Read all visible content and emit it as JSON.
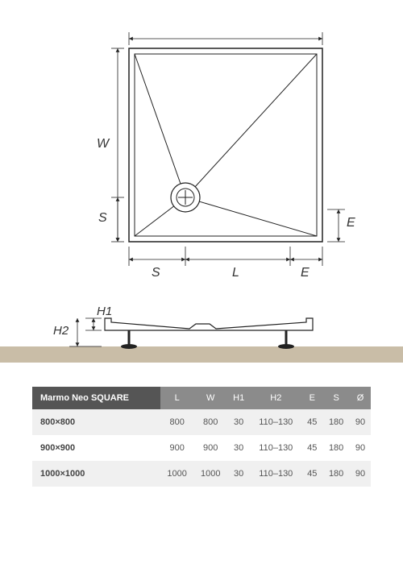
{
  "diagram": {
    "type": "technical-drawing",
    "plan_view": {
      "outline_color": "#222222",
      "line_width": 1.5,
      "labels": {
        "L": "L",
        "W": "W",
        "S_h": "S",
        "S_v": "S",
        "E_h": "E",
        "E_v": "E"
      },
      "label_fontsize": 16,
      "label_color": "#333333"
    },
    "side_view": {
      "labels": {
        "H1": "H1",
        "H2": "H2"
      },
      "ground_color": "#c9bda7",
      "outline_color": "#222222"
    }
  },
  "table": {
    "header_bg": "#8b8b8b",
    "header_first_bg": "#555555",
    "header_color": "#ffffff",
    "row_odd_bg": "#f0f0f0",
    "row_even_bg": "#ffffff",
    "cell_color": "#555555",
    "title": "Marmo Neo SQUARE",
    "columns": [
      "L",
      "W",
      "H1",
      "H2",
      "E",
      "S",
      "Ø"
    ],
    "rows": [
      {
        "name": "800×800",
        "values": [
          "800",
          "800",
          "30",
          "110–130",
          "45",
          "180",
          "90"
        ]
      },
      {
        "name": "900×900",
        "values": [
          "900",
          "900",
          "30",
          "110–130",
          "45",
          "180",
          "90"
        ]
      },
      {
        "name": "1000×1000",
        "values": [
          "1000",
          "1000",
          "30",
          "110–130",
          "45",
          "180",
          "90"
        ]
      }
    ]
  }
}
